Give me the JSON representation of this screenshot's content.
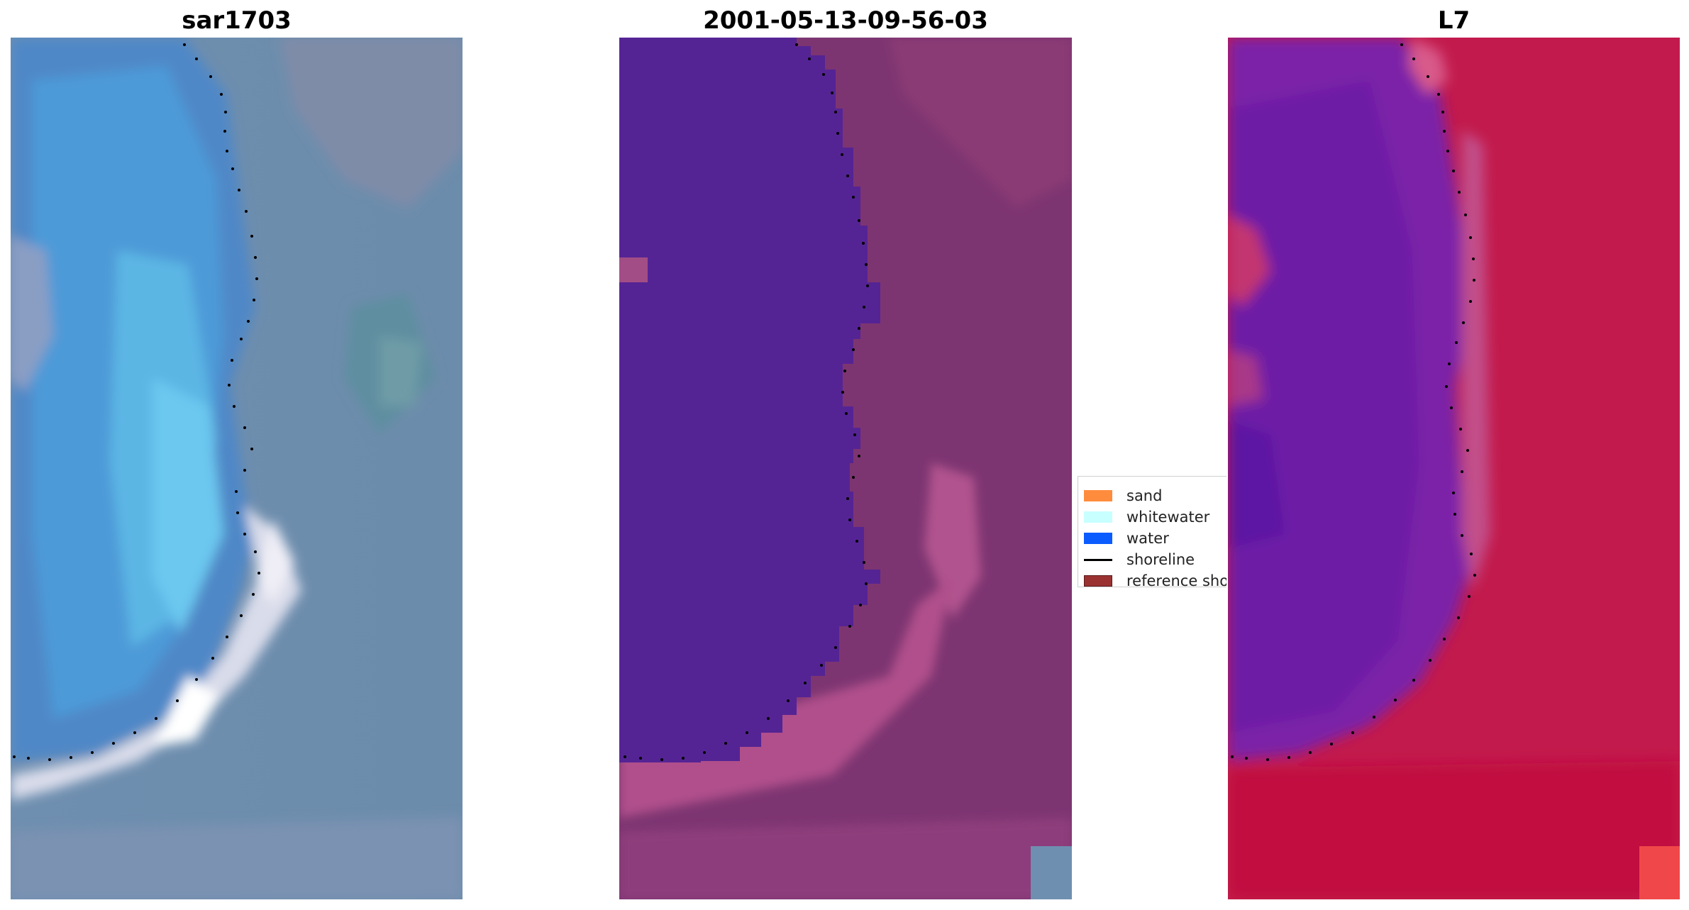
{
  "panels": [
    {
      "id": "rgb",
      "title": "sar1703"
    },
    {
      "id": "classified",
      "title": "2001-05-13-09-56-03"
    },
    {
      "id": "index",
      "title": "L7"
    }
  ],
  "legend": {
    "items": [
      {
        "label": "sand",
        "color": "#ff8c3c",
        "kind": "patch"
      },
      {
        "label": "whitewater",
        "color": "#c8ffff",
        "kind": "patch"
      },
      {
        "label": "water",
        "color": "#0a5cff",
        "kind": "patch"
      },
      {
        "label": "shoreline",
        "color": "#000000",
        "kind": "line"
      },
      {
        "label": "reference shoreline",
        "color": "#9b3232",
        "kind": "patch"
      }
    ]
  }
}
